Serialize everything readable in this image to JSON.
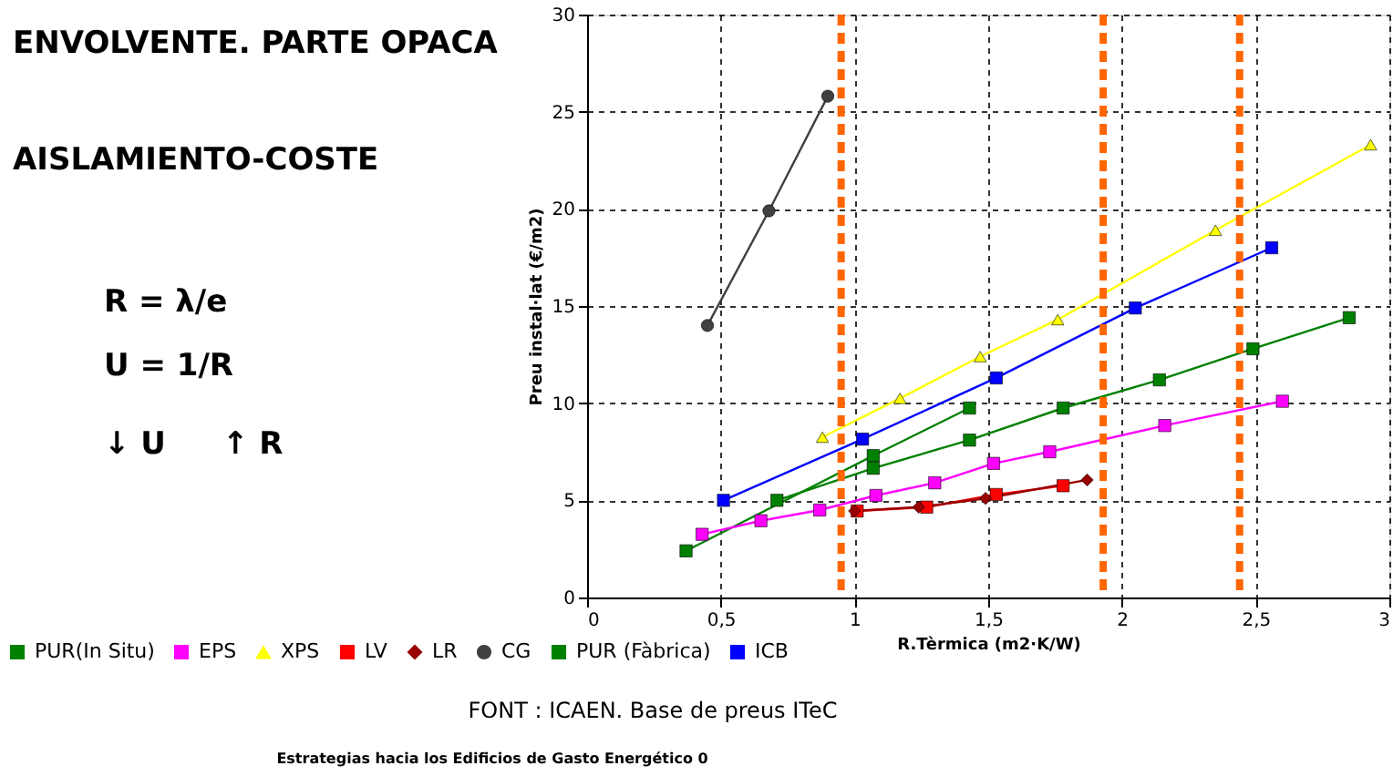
{
  "chart_data": {
    "type": "line",
    "title": "ENVOLVENTE. PARTE OPACA",
    "subtitle": "AISLAMIENTO-COSTE",
    "xlabel": "R.Tèrmica (m2·K/W)",
    "ylabel": "Preu instal·lat (€/m2)",
    "xlim": [
      0,
      3
    ],
    "ylim": [
      0,
      30
    ],
    "xticks": [
      0,
      {
        "value": 0.5,
        "label": "0,5"
      },
      1,
      {
        "value": 1.5,
        "label": "1,5"
      },
      2,
      {
        "value": 2.5,
        "label": "2,5"
      },
      3
    ],
    "yticks": [
      0,
      5,
      10,
      15,
      20,
      25,
      30
    ],
    "grid": true,
    "legend": "bottom",
    "line_style": "solid",
    "series": [
      {
        "name": "PUR(In Situ)",
        "color": "#008000",
        "marker": "square",
        "x": [
          0.37,
          1.07,
          1.43
        ],
        "values": [
          2.4,
          7.3,
          9.75
        ]
      },
      {
        "name": "EPS",
        "color": "#ff00ff",
        "marker": "square",
        "x": [
          0.43,
          0.65,
          0.87,
          1.08,
          1.3,
          1.52,
          1.73,
          2.16,
          2.6
        ],
        "values": [
          3.25,
          3.95,
          4.5,
          5.25,
          5.9,
          6.9,
          7.5,
          8.85,
          10.1
        ]
      },
      {
        "name": "XPS",
        "color": "#ffff00",
        "marker": "triangle",
        "x": [
          0.88,
          1.17,
          1.47,
          1.76,
          2.35,
          2.93
        ],
        "values": [
          8.25,
          10.25,
          12.4,
          14.3,
          18.9,
          23.3
        ]
      },
      {
        "name": "LV",
        "color": "#ff0000",
        "marker": "square",
        "x": [
          1.01,
          1.27,
          1.53,
          1.78
        ],
        "values": [
          4.45,
          4.65,
          5.3,
          5.75
        ]
      },
      {
        "name": "LR",
        "color": "#990000",
        "marker": "diamond",
        "x": [
          1.0,
          1.24,
          1.49,
          1.87
        ],
        "values": [
          4.45,
          4.65,
          5.1,
          6.05
        ]
      },
      {
        "name": "CG",
        "color": "#404040",
        "marker": "circle",
        "x": [
          0.45,
          0.68,
          0.9
        ],
        "values": [
          14.0,
          19.9,
          25.8
        ]
      },
      {
        "name": "PUR (Fàbrica)",
        "color": "#008000",
        "marker": "square",
        "x": [
          0.71,
          1.07,
          1.43,
          1.78,
          2.14,
          2.49,
          2.85
        ],
        "values": [
          5.0,
          6.65,
          8.1,
          9.75,
          11.2,
          12.8,
          14.4
        ]
      },
      {
        "name": "ICB",
        "color": "#0000ff",
        "marker": "square",
        "x": [
          0.51,
          1.03,
          1.53,
          2.05,
          2.56
        ],
        "values": [
          5.0,
          8.15,
          11.3,
          14.9,
          18.0
        ]
      }
    ],
    "ref_lines": [
      {
        "axis": "x",
        "value": 0.95,
        "color": "#ff6600",
        "line_style": "dashed"
      },
      {
        "axis": "x",
        "value": 1.93,
        "color": "#ff6600",
        "line_style": "dashed"
      },
      {
        "axis": "x",
        "value": 2.44,
        "color": "#ff6600",
        "line_style": "dashed"
      }
    ],
    "annotations": [
      "R = λ/e",
      "U = 1/R",
      "↓ U",
      "↑ R",
      "FONT : ICAEN. Base de preus ITeC",
      "Estrategias hacia los Edificios de Gasto Energético 0"
    ]
  }
}
